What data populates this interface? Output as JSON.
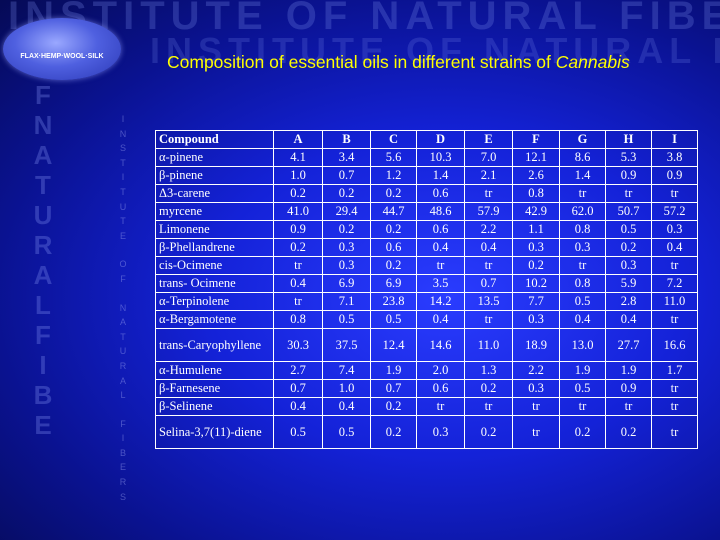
{
  "background_color": "#1422d8",
  "title_color": "#ffff00",
  "watermark": {
    "line1": "INSTITUTE OF NATURAL FIBERS",
    "line2": "INSTITUTE OF NATURAL FIBERS",
    "side_big": [
      "F",
      "N",
      "A",
      "T",
      "U",
      "R",
      "A",
      "L",
      "F",
      "I",
      "B",
      "E"
    ],
    "side_small": [
      "I",
      "N",
      "S",
      "T",
      "I",
      "T",
      "U",
      "T",
      "E",
      "O",
      "F",
      "N",
      "A",
      "T",
      "U",
      "R",
      "A",
      "L",
      "F",
      "I",
      "B",
      "E",
      "R",
      "S"
    ]
  },
  "logo": {
    "text": "FLAX·HEMP·WOOL·SILK"
  },
  "slide": {
    "title_prefix": "Composition of essential oils in different strains of",
    "title_emphasis": "Cannabis"
  },
  "table": {
    "header": [
      "Compound",
      "A",
      "B",
      "C",
      "D",
      "E",
      "F",
      "G",
      "H",
      "I"
    ],
    "rows": [
      [
        "α-pinene",
        "4.1",
        "3.4",
        "5.6",
        "10.3",
        "7.0",
        "12.1",
        "8.6",
        "5.3",
        "3.8"
      ],
      [
        "β-pinene",
        "1.0",
        "0.7",
        "1.2",
        "1.4",
        "2.1",
        "2.6",
        "1.4",
        "0.9",
        "0.9"
      ],
      [
        "Δ3-carene",
        "0.2",
        "0.2",
        "0.2",
        "0.6",
        "tr",
        "0.8",
        "tr",
        "tr",
        "tr"
      ],
      [
        "myrcene",
        "41.0",
        "29.4",
        "44.7",
        "48.6",
        "57.9",
        "42.9",
        "62.0",
        "50.7",
        "57.2"
      ],
      [
        "Limonene",
        "0.9",
        "0.2",
        "0.2",
        "0.6",
        "2.2",
        "1.1",
        "0.8",
        "0.5",
        "0.3"
      ],
      [
        "β-Phellandrene",
        "0.2",
        "0.3",
        "0.6",
        "0.4",
        "0.4",
        "0.3",
        "0.3",
        "0.2",
        "0.4"
      ],
      [
        "cis-Ocimene",
        "tr",
        "0.3",
        "0.2",
        "tr",
        "tr",
        "0.2",
        "tr",
        "0.3",
        "tr"
      ],
      [
        "trans- Ocimene",
        "0.4",
        "6.9",
        "6.9",
        "3.5",
        "0.7",
        "10.2",
        "0.8",
        "5.9",
        "7.2"
      ],
      [
        "α-Terpinolene",
        "tr",
        "7.1",
        "23.8",
        "14.2",
        "13.5",
        "7.7",
        "0.5",
        "2.8",
        "11.0"
      ],
      [
        "α-Bergamotene",
        "0.8",
        "0.5",
        "0.5",
        "0.4",
        "tr",
        "0.3",
        "0.4",
        "0.4",
        "tr"
      ],
      [
        "trans-Caryophyllene",
        "30.3",
        "37.5",
        "12.4",
        "14.6",
        "11.0",
        "18.9",
        "13.0",
        "27.7",
        "16.6"
      ],
      [
        "α-Humulene",
        "2.7",
        "7.4",
        "1.9",
        "2.0",
        "1.3",
        "2.2",
        "1.9",
        "1.9",
        "1.7"
      ],
      [
        "β-Farnesene",
        "0.7",
        "1.0",
        "0.7",
        "0.6",
        "0.2",
        "0.3",
        "0.5",
        "0.9",
        "tr"
      ],
      [
        "β-Selinene",
        "0.4",
        "0.4",
        "0.2",
        "tr",
        "tr",
        "tr",
        "tr",
        "tr",
        "tr"
      ],
      [
        "Selina-3,7(11)-diene",
        "0.5",
        "0.5",
        "0.2",
        "0.3",
        "0.2",
        "tr",
        "0.2",
        "0.2",
        "tr"
      ]
    ]
  }
}
